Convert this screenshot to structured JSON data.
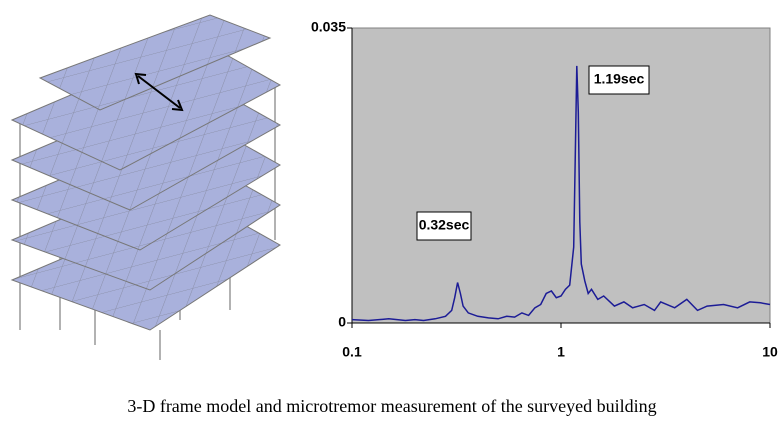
{
  "chart_data": {
    "type": "line",
    "caption": "3-D frame model and microtremor measurement of the surveyed building",
    "x": [
      0.1,
      0.12,
      0.15,
      0.18,
      0.2,
      0.22,
      0.25,
      0.28,
      0.3,
      0.31,
      0.32,
      0.33,
      0.34,
      0.36,
      0.4,
      0.45,
      0.5,
      0.55,
      0.6,
      0.65,
      0.7,
      0.75,
      0.8,
      0.85,
      0.9,
      0.95,
      1.0,
      1.05,
      1.1,
      1.15,
      1.17,
      1.19,
      1.21,
      1.23,
      1.25,
      1.3,
      1.35,
      1.4,
      1.5,
      1.6,
      1.8,
      2.0,
      2.2,
      2.5,
      2.8,
      3.0,
      3.5,
      4.0,
      4.5,
      5,
      6,
      7,
      8,
      9,
      10
    ],
    "series": [
      {
        "color": "#1c1c96",
        "values": [
          0.0004,
          0.0003,
          0.0005,
          0.0003,
          0.0004,
          0.0003,
          0.0005,
          0.0008,
          0.0015,
          0.003,
          0.0048,
          0.0035,
          0.002,
          0.0012,
          0.0008,
          0.0006,
          0.0005,
          0.0008,
          0.0007,
          0.0012,
          0.0009,
          0.0018,
          0.0022,
          0.0035,
          0.0038,
          0.003,
          0.0032,
          0.004,
          0.0045,
          0.009,
          0.02,
          0.0305,
          0.025,
          0.012,
          0.007,
          0.005,
          0.0035,
          0.004,
          0.0028,
          0.0032,
          0.002,
          0.0025,
          0.0018,
          0.0022,
          0.0015,
          0.0025,
          0.0018,
          0.0028,
          0.0015,
          0.002,
          0.0022,
          0.0018,
          0.0025,
          0.0024,
          0.0022
        ]
      }
    ],
    "xscale": "log",
    "xlim": [
      0.1,
      10
    ],
    "xticks": [
      0.1,
      1,
      10
    ],
    "ylim": [
      0,
      0.035
    ],
    "yticks": [
      0,
      0.035
    ],
    "background": "#c0c0c0",
    "annotations": [
      "0.32sec",
      "1.19sec"
    ]
  }
}
